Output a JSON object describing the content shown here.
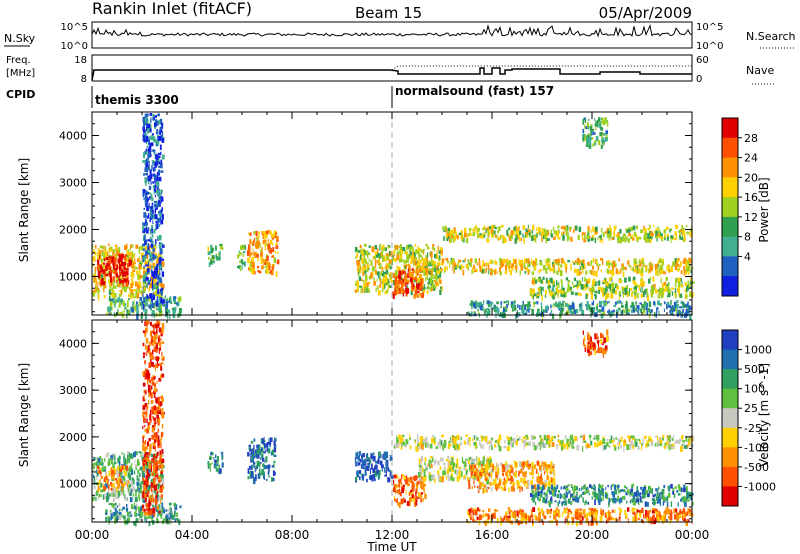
{
  "header": {
    "station": "Rankin Inlet (fitACF)",
    "beam": "Beam 15",
    "date": "05/Apr/2009"
  },
  "noise_panel": {
    "left_label": "N.Sky",
    "left_ticks": [
      "10^5",
      "10^0"
    ],
    "right_ticks": [
      "10^5",
      "10^0"
    ],
    "right_label": "N.Search"
  },
  "freq_panel": {
    "left_label_1": "Freq.",
    "left_label_2": "[MHz]",
    "left_ticks": [
      "18",
      "8"
    ],
    "right_ticks": [
      "60",
      "0"
    ],
    "right_label": "Nave"
  },
  "cpid": {
    "label": "CPID",
    "segments": [
      {
        "name": "themis 3300",
        "start_hour": 0
      },
      {
        "name": "normalsound (fast) 157",
        "start_hour": 12
      }
    ]
  },
  "chart_data": [
    {
      "type": "heatmap",
      "title": "Power",
      "ylabel": "Slant Range [km]",
      "xlabel": "Time UT",
      "x_ticks": [
        "00:00",
        "04:00",
        "08:00",
        "12:00",
        "16:00",
        "20:00",
        "00:00"
      ],
      "xlim_hours": [
        0,
        24
      ],
      "y_ticks": [
        1000,
        2000,
        3000,
        4000
      ],
      "ylim_km": [
        180,
        4500
      ],
      "colorbar_label": "Power [dB]",
      "colorbar_ticks": [
        "28",
        "24",
        "20",
        "16",
        "12",
        "8",
        "4"
      ],
      "colorbar_colors": [
        "#e00000",
        "#ff5000",
        "#ff9000",
        "#ffd000",
        "#a0d020",
        "#30a050",
        "#40b090",
        "#2060c0",
        "#1020e0"
      ],
      "echo_regions": [
        {
          "t0": 0.0,
          "t1": 2.8,
          "r0": 600,
          "r1": 1700,
          "level": 0.6
        },
        {
          "t0": 0.2,
          "t1": 1.5,
          "r0": 900,
          "r1": 1500,
          "level": 0.95
        },
        {
          "t0": 0.5,
          "t1": 3.5,
          "r0": 200,
          "r1": 600,
          "level": 0.35
        },
        {
          "t0": 4.6,
          "t1": 5.2,
          "r0": 1300,
          "r1": 1700,
          "level": 0.4
        },
        {
          "t0": 6.2,
          "t1": 7.4,
          "r0": 1100,
          "r1": 2000,
          "level": 0.7
        },
        {
          "t0": 5.8,
          "t1": 6.1,
          "r0": 1200,
          "r1": 1700,
          "level": 0.4
        },
        {
          "t0": 10.5,
          "t1": 14.0,
          "r0": 700,
          "r1": 1700,
          "level": 0.55
        },
        {
          "t0": 12.0,
          "t1": 13.2,
          "r0": 600,
          "r1": 1200,
          "level": 0.85
        },
        {
          "t0": 13.0,
          "t1": 24.0,
          "r0": 1100,
          "r1": 1400,
          "level": 0.6
        },
        {
          "t0": 14.0,
          "t1": 24.0,
          "r0": 1800,
          "r1": 2100,
          "level": 0.55
        },
        {
          "t0": 17.5,
          "t1": 24.0,
          "r0": 600,
          "r1": 1000,
          "level": 0.5
        },
        {
          "t0": 19.6,
          "t1": 20.6,
          "r0": 3800,
          "r1": 4400,
          "level": 0.35
        },
        {
          "t0": 2.0,
          "t1": 2.8,
          "r0": 400,
          "r1": 4500,
          "level": 0.15
        },
        {
          "t0": 15.0,
          "t1": 24.0,
          "r0": 200,
          "r1": 500,
          "level": 0.3
        }
      ]
    },
    {
      "type": "heatmap",
      "title": "Velocity",
      "ylabel": "Slant Range [km]",
      "xlabel": "Time UT",
      "x_ticks": [
        "00:00",
        "04:00",
        "08:00",
        "12:00",
        "16:00",
        "20:00",
        "00:00"
      ],
      "xlim_hours": [
        0,
        24
      ],
      "y_ticks": [
        1000,
        2000,
        3000,
        4000
      ],
      "ylim_km": [
        180,
        4500
      ],
      "colorbar_label": "Velocity [m s^-1]",
      "colorbar_ticks": [
        "1000",
        "500",
        "100",
        "25",
        "-25",
        "-100",
        "-500",
        "-1000"
      ],
      "colorbar_colors": [
        "#2040c0",
        "#2070b0",
        "#30a060",
        "#60c040",
        "#c8c8c0",
        "#ffd000",
        "#ff9000",
        "#ff5000",
        "#e00000"
      ],
      "echo_regions": [
        {
          "t0": 0.0,
          "t1": 2.8,
          "r0": 700,
          "r1": 1700,
          "level": 0.35
        },
        {
          "t0": 0.2,
          "t1": 1.4,
          "r0": 900,
          "r1": 1400,
          "level": 0.7
        },
        {
          "t0": 0.5,
          "t1": 3.5,
          "r0": 200,
          "r1": 600,
          "level": 0.3
        },
        {
          "t0": 4.6,
          "t1": 5.2,
          "r0": 1300,
          "r1": 1700,
          "level": 0.25
        },
        {
          "t0": 6.2,
          "t1": 7.3,
          "r0": 1100,
          "r1": 2000,
          "level": 0.15
        },
        {
          "t0": 10.5,
          "t1": 12.0,
          "r0": 1100,
          "r1": 1700,
          "level": 0.1
        },
        {
          "t0": 12.0,
          "t1": 13.3,
          "r0": 600,
          "r1": 1200,
          "level": 0.78
        },
        {
          "t0": 12.0,
          "t1": 24.0,
          "r0": 1800,
          "r1": 2050,
          "level": 0.5
        },
        {
          "t0": 13.0,
          "t1": 16.0,
          "r0": 1100,
          "r1": 1600,
          "level": 0.5
        },
        {
          "t0": 15.0,
          "t1": 18.5,
          "r0": 900,
          "r1": 1500,
          "level": 0.7
        },
        {
          "t0": 17.5,
          "t1": 24.0,
          "r0": 600,
          "r1": 1000,
          "level": 0.25
        },
        {
          "t0": 19.6,
          "t1": 20.6,
          "r0": 3800,
          "r1": 4300,
          "level": 0.8
        },
        {
          "t0": 2.0,
          "t1": 2.8,
          "r0": 400,
          "r1": 4500,
          "level": 0.85
        },
        {
          "t0": 15.0,
          "t1": 24.0,
          "r0": 200,
          "r1": 500,
          "level": 0.75
        }
      ]
    }
  ]
}
